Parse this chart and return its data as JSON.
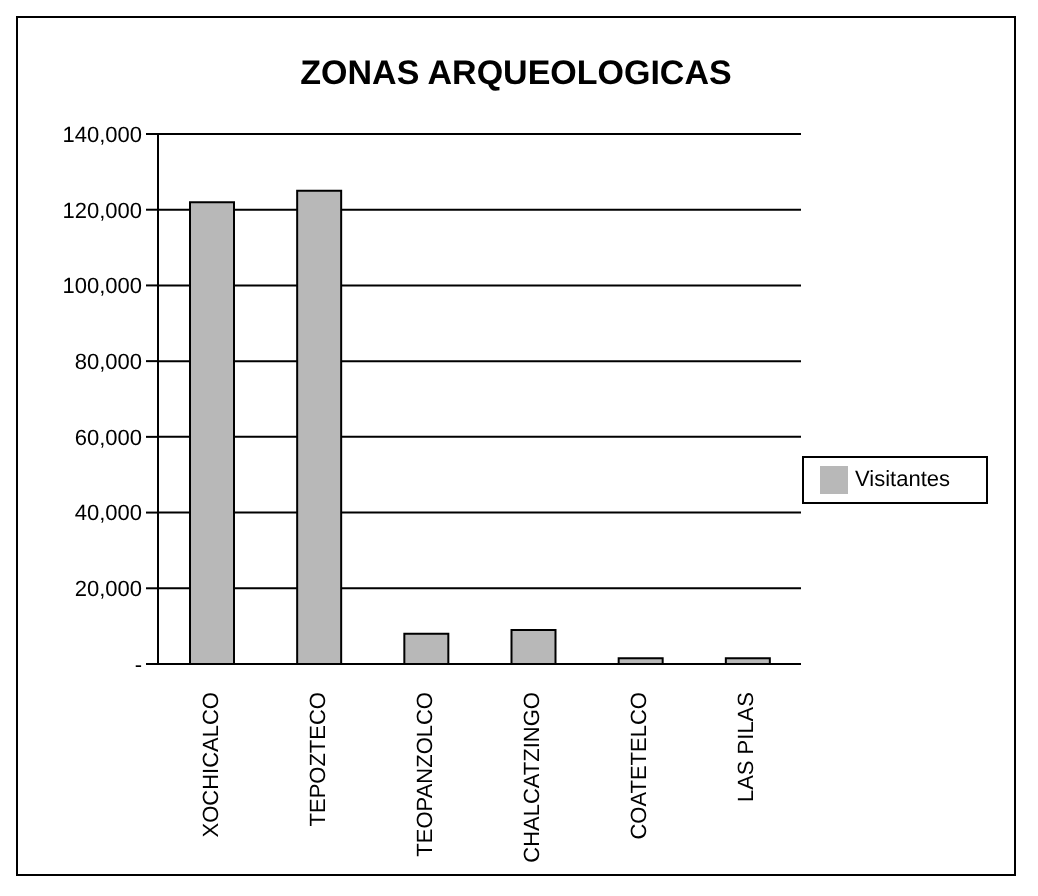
{
  "chart_data": {
    "type": "bar",
    "title": "ZONAS  ARQUEOLOGICAS",
    "categories": [
      "XOCHICALCO",
      "TEPOZTECO",
      "TEOPANZOLCO",
      "CHALCATZINGO",
      "COATETELCO",
      "LAS PILAS"
    ],
    "series": [
      {
        "name": "Visitantes",
        "color": "#b8b8b8",
        "values": [
          122000,
          125000,
          8000,
          9000,
          1500,
          1500
        ]
      }
    ],
    "ylim": [
      0,
      140000
    ],
    "yticks": [
      {
        "value": 0,
        "label": "-"
      },
      {
        "value": 20000,
        "label": "20,000"
      },
      {
        "value": 40000,
        "label": "40,000"
      },
      {
        "value": 60000,
        "label": "60,000"
      },
      {
        "value": 80000,
        "label": "80,000"
      },
      {
        "value": 100000,
        "label": "100,000"
      },
      {
        "value": 120000,
        "label": "120,000"
      },
      {
        "value": 140000,
        "label": "140,000"
      }
    ],
    "grid": "y",
    "legend": "right"
  }
}
